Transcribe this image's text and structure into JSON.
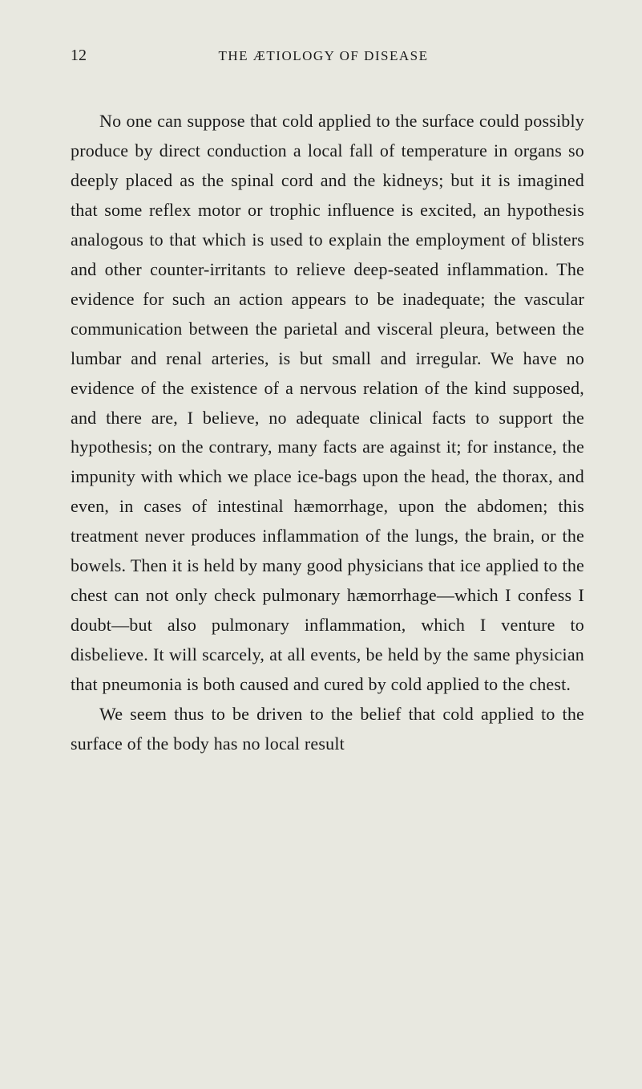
{
  "page": {
    "number": "12",
    "running_title": "THE ÆTIOLOGY OF DISEASE",
    "background_color": "#e8e8e0",
    "text_color": "#1a1a1a",
    "body_font_size": 22,
    "line_height": 1.68,
    "header_font_size": 17,
    "page_number_font_size": 20
  },
  "paragraphs": [
    "No one can suppose that cold applied to the surface could possibly produce by direct conduction a local fall of temperature in organs so deeply placed as the spinal cord and the kidneys; but it is imagined that some reflex motor or trophic influence is excited, an hypothesis analogous to that which is used to explain the employment of blisters and other counter-irritants to relieve deep-seated inflammation. The evidence for such an action appears to be inadequate; the vascular communication between the parietal and visceral pleura, between the lumbar and renal arteries, is but small and irregular. We have no evidence of the existence of a nervous relation of the kind supposed, and there are, I believe, no adequate clinical facts to support the hypothesis; on the contrary, many facts are against it; for instance, the impunity with which we place ice-bags upon the head, the thorax, and even, in cases of intestinal hæmorrhage, upon the abdomen; this treatment never produces inflammation of the lungs, the brain, or the bowels. Then it is held by many good physicians that ice applied to the chest can not only check pulmonary hæmorrhage—which I confess I doubt—but also pulmonary inflammation, which I venture to disbelieve. It will scarcely, at all events, be held by the same physician that pneumonia is both caused and cured by cold applied to the chest.",
    "We seem thus to be driven to the belief that cold applied to the surface of the body has no local result"
  ]
}
